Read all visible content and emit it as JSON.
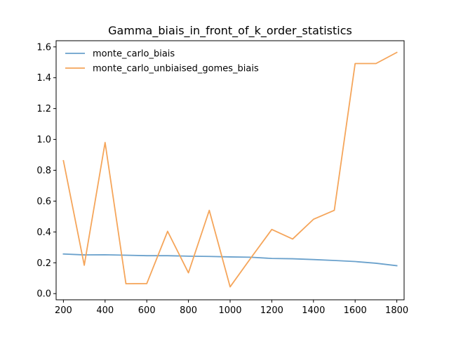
{
  "chart_data": {
    "type": "line",
    "title": "Gamma_biais_in_front_of_k_order_statistics",
    "xlabel": "",
    "ylabel": "",
    "xlim": [
      165,
      1835
    ],
    "ylim": [
      -0.04,
      1.64
    ],
    "x_ticks": [
      200,
      400,
      600,
      800,
      1000,
      1200,
      1400,
      1600,
      1800
    ],
    "x_tick_labels": [
      "200",
      "400",
      "600",
      "800",
      "1000",
      "1200",
      "1400",
      "1600",
      "1800"
    ],
    "y_ticks": [
      0.0,
      0.2,
      0.4,
      0.6,
      0.8,
      1.0,
      1.2,
      1.4,
      1.6
    ],
    "y_tick_labels": [
      "0.0",
      "0.2",
      "0.4",
      "0.6",
      "0.8",
      "1.0",
      "1.2",
      "1.4",
      "1.6"
    ],
    "grid": false,
    "legend_position": "top-left",
    "x": [
      200,
      300,
      400,
      500,
      600,
      700,
      800,
      900,
      1000,
      1100,
      1200,
      1300,
      1400,
      1500,
      1600,
      1700,
      1800
    ],
    "series": [
      {
        "name": "monte_carlo_biais",
        "color": "#6aa1cc",
        "values": [
          0.257,
          0.251,
          0.252,
          0.249,
          0.246,
          0.246,
          0.243,
          0.241,
          0.238,
          0.236,
          0.228,
          0.226,
          0.221,
          0.215,
          0.208,
          0.197,
          0.181
        ]
      },
      {
        "name": "monte_carlo_unbiaised_gomes_biais",
        "color": "#f5a55a",
        "values": [
          0.862,
          0.184,
          0.98,
          0.064,
          0.065,
          0.404,
          0.135,
          0.54,
          0.044,
          0.232,
          0.416,
          0.354,
          0.482,
          0.54,
          1.492,
          1.492,
          1.564
        ]
      }
    ]
  }
}
